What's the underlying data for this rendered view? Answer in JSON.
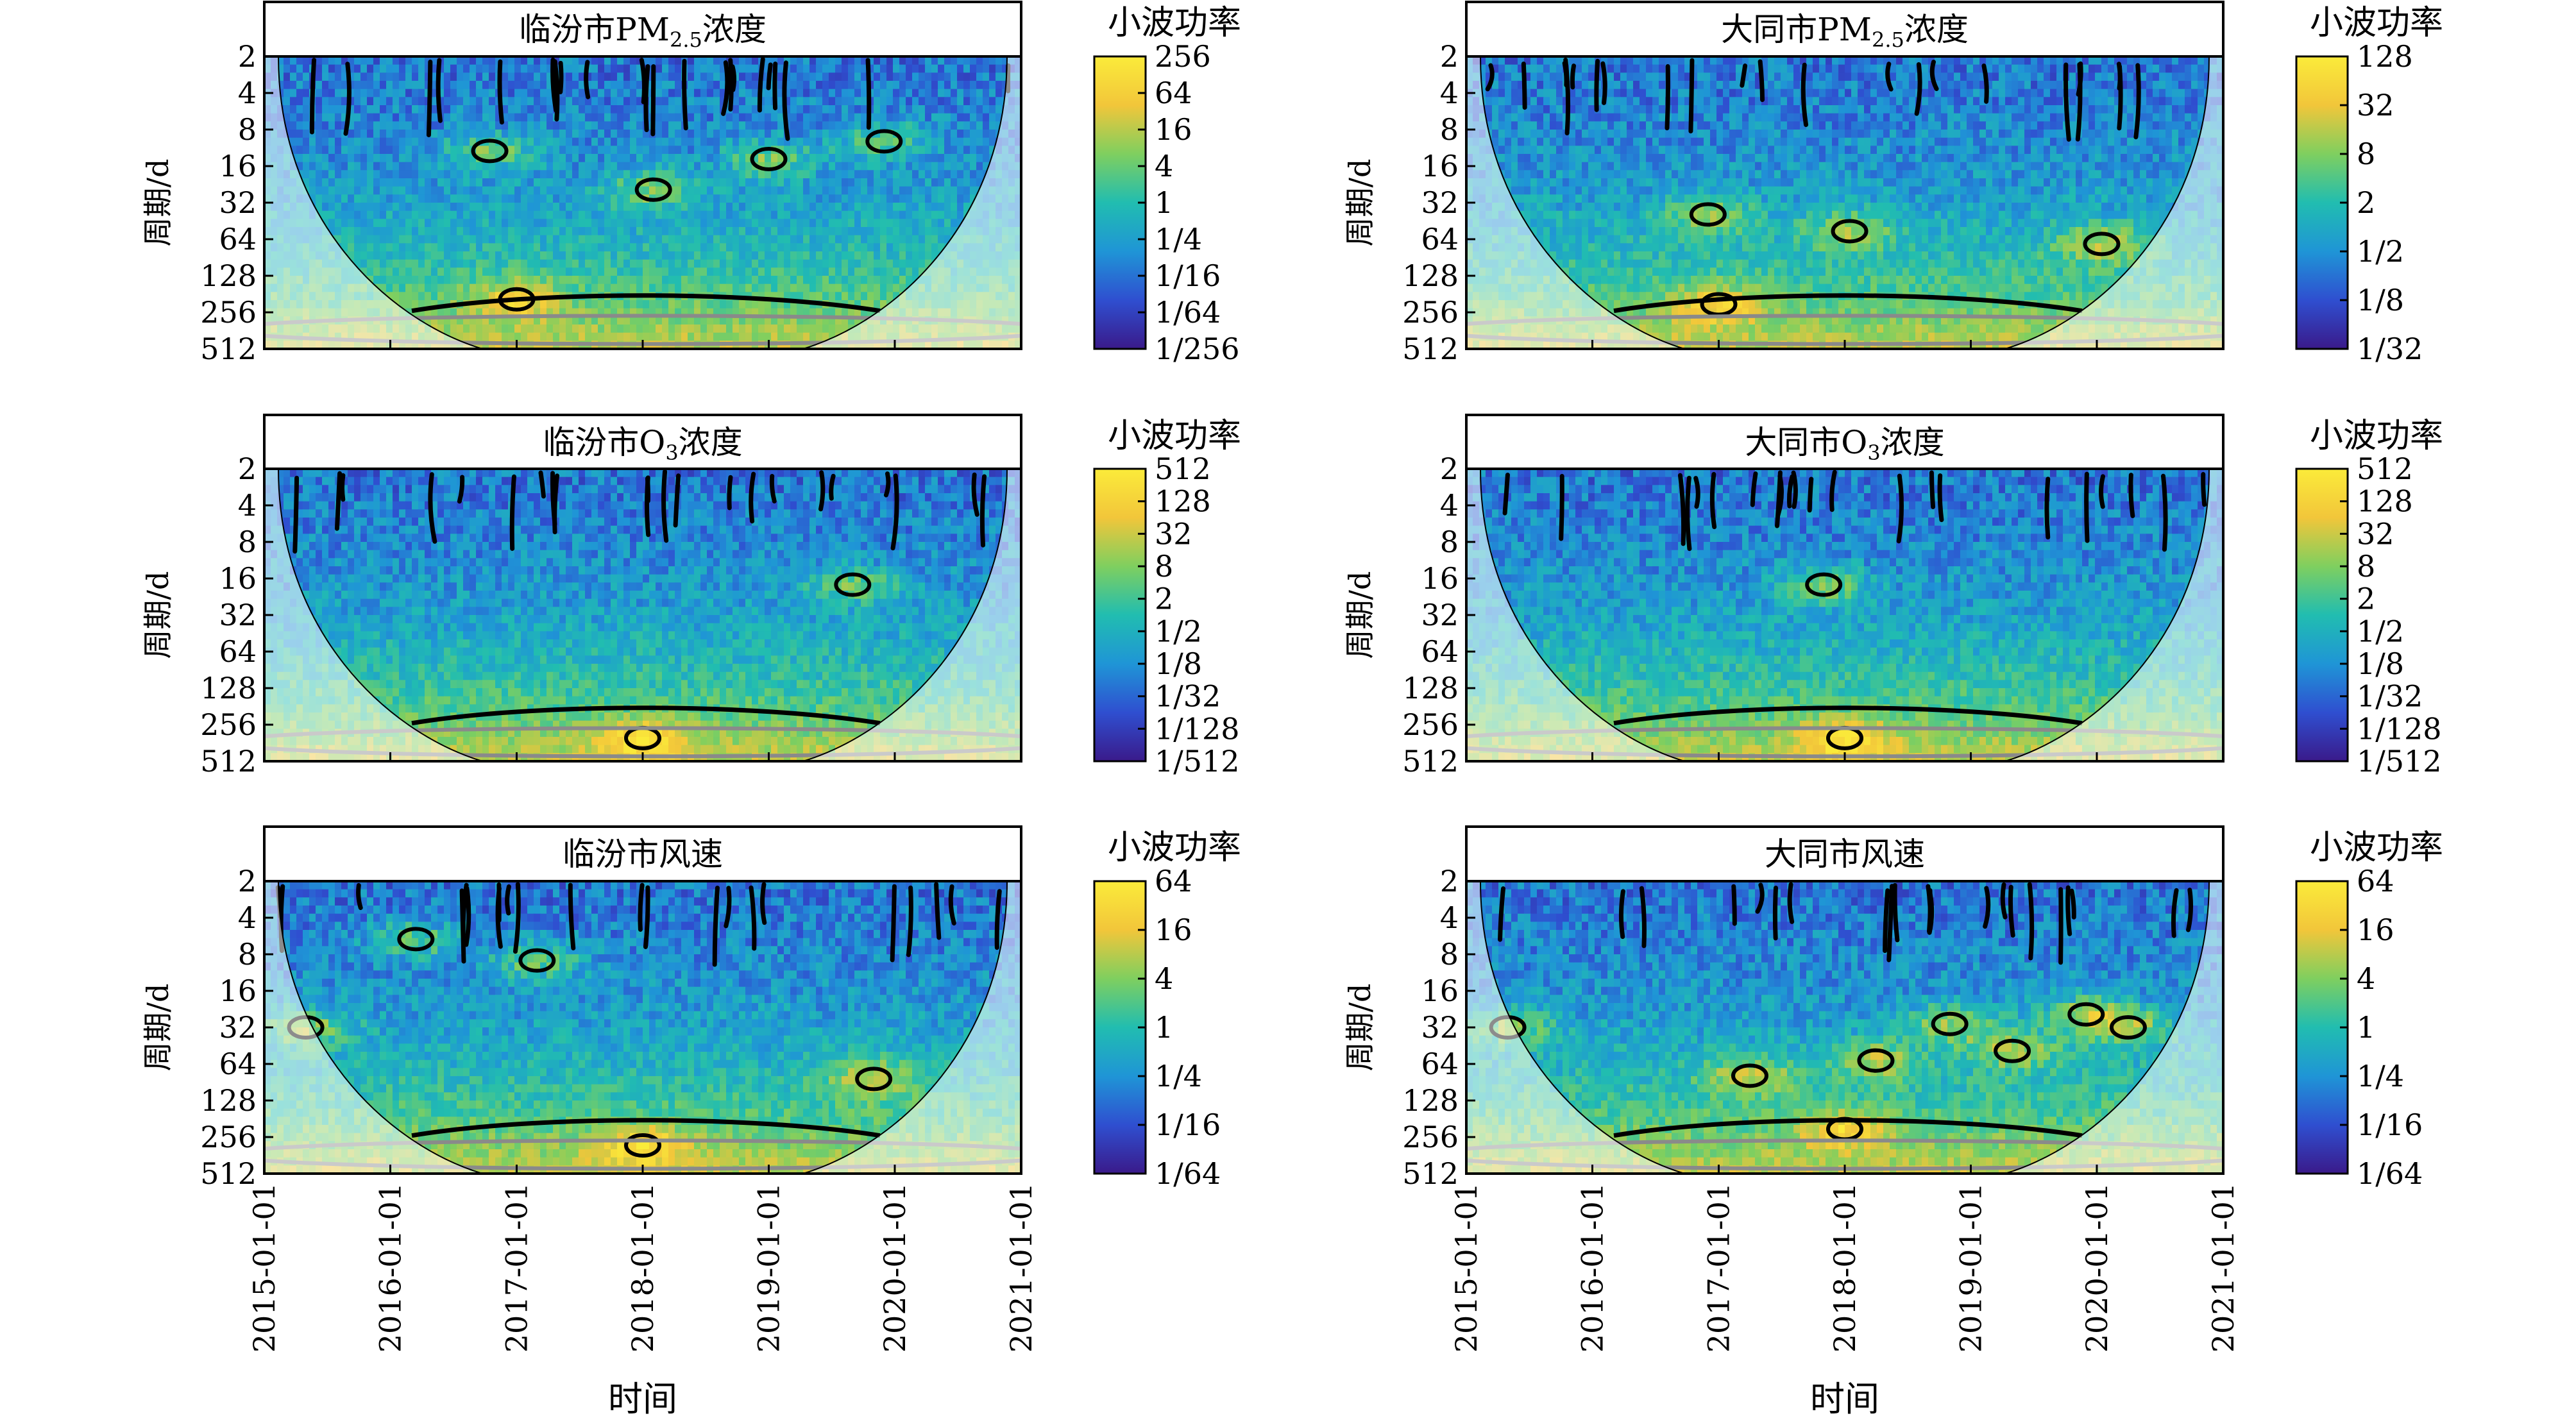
{
  "figure": {
    "x_axis_label": "时间",
    "colorbar_label": "小波功率",
    "x_ticks": [
      "2015-01-01",
      "2016-01-01",
      "2017-01-01",
      "2018-01-01",
      "2019-01-01",
      "2020-01-01",
      "2021-01-01"
    ]
  },
  "chart_data": [
    {
      "type": "heatmap",
      "title_prefix": "临汾市PM",
      "title_sub": "2.5",
      "title_suffix": "浓度",
      "ylabel": "周期/d",
      "xlim": [
        "2015-01-01",
        "2021-01-01"
      ],
      "y_ticks": [
        "2",
        "4",
        "8",
        "16",
        "32",
        "64",
        "128",
        "256",
        "512"
      ],
      "ylim": [
        2,
        512
      ],
      "y_scale": "log2",
      "colorbar_ticks": [
        "256",
        "64",
        "16",
        "4",
        "1",
        "1/4",
        "1/16",
        "1/64",
        "1/256"
      ],
      "palette": [
        "#3a1a8a",
        "#2f4fd0",
        "#1f95d6",
        "#21bdb0",
        "#7fcf5f",
        "#f2c63a",
        "#fbeb3a"
      ],
      "hotspot_regions": [
        {
          "t": "2016-10-15",
          "period": 12
        },
        {
          "t": "2018-02-01",
          "period": 25
        },
        {
          "t": "2019-01-01",
          "period": 14
        },
        {
          "t": "2019-12-01",
          "period": 10
        },
        {
          "t": "2017-01-01",
          "period": 200
        }
      ]
    },
    {
      "type": "heatmap",
      "title_prefix": "大同市PM",
      "title_sub": "2.5",
      "title_suffix": "浓度",
      "ylabel": "周期/d",
      "xlim": [
        "2015-01-01",
        "2021-01-01"
      ],
      "y_ticks": [
        "2",
        "4",
        "8",
        "16",
        "32",
        "64",
        "128",
        "256",
        "512"
      ],
      "ylim": [
        2,
        512
      ],
      "y_scale": "log2",
      "colorbar_ticks": [
        "128",
        "32",
        "8",
        "2",
        "1/2",
        "1/8",
        "1/32"
      ],
      "palette": [
        "#3a1a8a",
        "#2f4fd0",
        "#1f95d6",
        "#21bdb0",
        "#7fcf5f",
        "#f2c63a",
        "#fbeb3a"
      ],
      "hotspot_regions": [
        {
          "t": "2016-12-01",
          "period": 40
        },
        {
          "t": "2018-01-15",
          "period": 55
        },
        {
          "t": "2020-01-15",
          "period": 70
        },
        {
          "t": "2017-01-01",
          "period": 220
        }
      ]
    },
    {
      "type": "heatmap",
      "title_prefix": "临汾市O",
      "title_sub": "3",
      "title_suffix": "浓度",
      "ylabel": "周期/d",
      "xlim": [
        "2015-01-01",
        "2021-01-01"
      ],
      "y_ticks": [
        "2",
        "4",
        "8",
        "16",
        "32",
        "64",
        "128",
        "256",
        "512"
      ],
      "ylim": [
        2,
        512
      ],
      "y_scale": "log2",
      "colorbar_ticks": [
        "512",
        "128",
        "32",
        "8",
        "2",
        "1/2",
        "1/8",
        "1/32",
        "1/128",
        "1/512"
      ],
      "palette": [
        "#3a1a8a",
        "#2f4fd0",
        "#1f95d6",
        "#21bdb0",
        "#7fcf5f",
        "#f2c63a",
        "#fbeb3a"
      ],
      "hotspot_regions": [
        {
          "t": "2019-09-01",
          "period": 18
        },
        {
          "t": "2018-01-01",
          "period": 330
        }
      ]
    },
    {
      "type": "heatmap",
      "title_prefix": "大同市O",
      "title_sub": "3",
      "title_suffix": "浓度",
      "ylabel": "周期/d",
      "xlim": [
        "2015-01-01",
        "2021-01-01"
      ],
      "y_ticks": [
        "2",
        "4",
        "8",
        "16",
        "32",
        "64",
        "128",
        "256",
        "512"
      ],
      "ylim": [
        2,
        512
      ],
      "y_scale": "log2",
      "colorbar_ticks": [
        "512",
        "128",
        "32",
        "8",
        "2",
        "1/2",
        "1/8",
        "1/32",
        "1/128",
        "1/512"
      ],
      "palette": [
        "#3a1a8a",
        "#2f4fd0",
        "#1f95d6",
        "#21bdb0",
        "#7fcf5f",
        "#f2c63a",
        "#fbeb3a"
      ],
      "hotspot_regions": [
        {
          "t": "2017-11-01",
          "period": 18
        },
        {
          "t": "2018-01-01",
          "period": 330
        }
      ]
    },
    {
      "type": "heatmap",
      "title_prefix": "临汾市风速",
      "title_sub": "",
      "title_suffix": "",
      "ylabel": "周期/d",
      "xlim": [
        "2015-01-01",
        "2021-01-01"
      ],
      "y_ticks": [
        "2",
        "4",
        "8",
        "16",
        "32",
        "64",
        "128",
        "256",
        "512"
      ],
      "ylim": [
        2,
        512
      ],
      "y_scale": "log2",
      "colorbar_ticks": [
        "64",
        "16",
        "4",
        "1",
        "1/4",
        "1/16",
        "1/64"
      ],
      "palette": [
        "#3a1a8a",
        "#2f4fd0",
        "#1f95d6",
        "#21bdb0",
        "#7fcf5f",
        "#f2c63a",
        "#fbeb3a"
      ],
      "hotspot_regions": [
        {
          "t": "2015-05-01",
          "period": 32
        },
        {
          "t": "2016-03-15",
          "period": 6
        },
        {
          "t": "2017-03-01",
          "period": 9
        },
        {
          "t": "2019-11-01",
          "period": 85
        },
        {
          "t": "2018-01-01",
          "period": 300
        }
      ]
    },
    {
      "type": "heatmap",
      "title_prefix": "大同市风速",
      "title_sub": "",
      "title_suffix": "",
      "ylabel": "周期/d",
      "xlim": [
        "2015-01-01",
        "2021-01-01"
      ],
      "y_ticks": [
        "2",
        "4",
        "8",
        "16",
        "32",
        "64",
        "128",
        "256",
        "512"
      ],
      "ylim": [
        2,
        512
      ],
      "y_scale": "log2",
      "colorbar_ticks": [
        "64",
        "16",
        "4",
        "1",
        "1/4",
        "1/16",
        "1/64"
      ],
      "palette": [
        "#3a1a8a",
        "#2f4fd0",
        "#1f95d6",
        "#21bdb0",
        "#7fcf5f",
        "#f2c63a",
        "#fbeb3a"
      ],
      "hotspot_regions": [
        {
          "t": "2015-05-01",
          "period": 32
        },
        {
          "t": "2017-04-01",
          "period": 80
        },
        {
          "t": "2018-04-01",
          "period": 60
        },
        {
          "t": "2018-11-01",
          "period": 30
        },
        {
          "t": "2019-05-01",
          "period": 50
        },
        {
          "t": "2019-12-01",
          "period": 25
        },
        {
          "t": "2020-04-01",
          "period": 32
        },
        {
          "t": "2018-01-01",
          "period": 220
        }
      ]
    }
  ]
}
